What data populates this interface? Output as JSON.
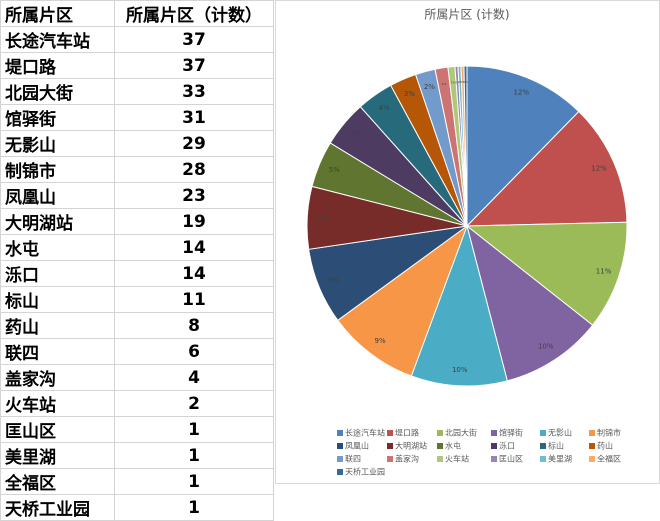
{
  "table": {
    "header": [
      "所属片区",
      "所属片区（计数）"
    ],
    "rows": [
      [
        "长途汽车站",
        37
      ],
      [
        "堤口路",
        37
      ],
      [
        "北园大街",
        33
      ],
      [
        "馆驿街",
        31
      ],
      [
        "无影山",
        29
      ],
      [
        "制锦市",
        28
      ],
      [
        "凤凰山",
        23
      ],
      [
        "大明湖站",
        19
      ],
      [
        "水屯",
        14
      ],
      [
        "泺口",
        14
      ],
      [
        "标山",
        11
      ],
      [
        "药山",
        8
      ],
      [
        "联四",
        6
      ],
      [
        "盖家沟",
        4
      ],
      [
        "火车站",
        2
      ],
      [
        "匡山区",
        1
      ],
      [
        "美里湖",
        1
      ],
      [
        "全福区",
        1
      ],
      [
        "天桥工业园",
        1
      ]
    ]
  },
  "chart_data": {
    "type": "pie",
    "title": "所属片区 (计数)",
    "categories": [
      "长途汽车站",
      "堤口路",
      "北园大街",
      "馆驿街",
      "无影山",
      "制锦市",
      "凤凰山",
      "大明湖站",
      "水屯",
      "泺口",
      "标山",
      "药山",
      "联四",
      "盖家沟",
      "火车站",
      "匡山区",
      "美里湖",
      "全福区",
      "天桥工业园"
    ],
    "values": [
      12.3,
      12.3,
      11,
      10.3,
      9.7,
      9.3,
      7.7,
      6.3,
      4.7,
      4.7,
      3.7,
      2.7,
      2,
      1.3,
      0.7,
      0.3,
      0.3,
      0.3,
      0.3
    ],
    "value_labels": [
      "12%",
      "12%",
      "11%",
      "10%",
      "10%",
      "9%",
      "8%",
      "6%",
      "5%",
      "5%",
      "4%",
      "3%",
      "2%",
      "1%",
      "1%",
      "0%",
      "0%",
      "0%",
      "0%"
    ],
    "colors": [
      "#4f81bd",
      "#c0504d",
      "#9bbb59",
      "#8064a2",
      "#4bacc6",
      "#f79646",
      "#2c4d75",
      "#772c2a",
      "#5f7530",
      "#4d3b62",
      "#276a7c",
      "#b65708",
      "#729aca",
      "#cd7371",
      "#afc97a",
      "#9983b5",
      "#6fbdd1",
      "#f9ab6b",
      "#3a679c"
    ],
    "legend": "bottom"
  }
}
